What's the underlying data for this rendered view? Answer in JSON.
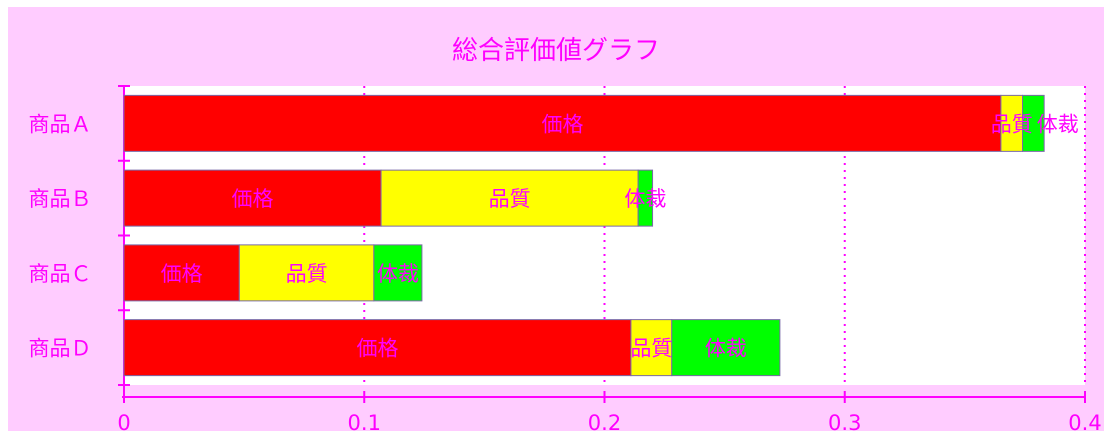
{
  "chart_data": {
    "type": "bar",
    "orientation": "horizontal",
    "stacked": true,
    "title": "総合評価値グラフ",
    "xlabel": "",
    "ylabel": "",
    "xlim": [
      0,
      0.4
    ],
    "x_ticks": [
      "0",
      "0.1",
      "0.2",
      "0.3",
      "0.4"
    ],
    "grid": "vertical dotted",
    "categories": [
      "商品A",
      "商品B",
      "商品C",
      "商品D"
    ],
    "category_labels": [
      "商品Ａ",
      "商品Ｂ",
      "商品Ｃ",
      "商品Ｄ"
    ],
    "series": [
      {
        "name": "価格",
        "color": "#ff0000",
        "values": [
          0.365,
          0.107,
          0.048,
          0.211
        ]
      },
      {
        "name": "品質",
        "color": "#ffff00",
        "values": [
          0.009,
          0.107,
          0.056,
          0.017
        ]
      },
      {
        "name": "体裁",
        "color": "#00ff00",
        "values": [
          0.009,
          0.006,
          0.02,
          0.045
        ]
      }
    ],
    "text_color": "#ff00ff",
    "background_color": "#ffccff",
    "plot_background": "#ffffff"
  }
}
